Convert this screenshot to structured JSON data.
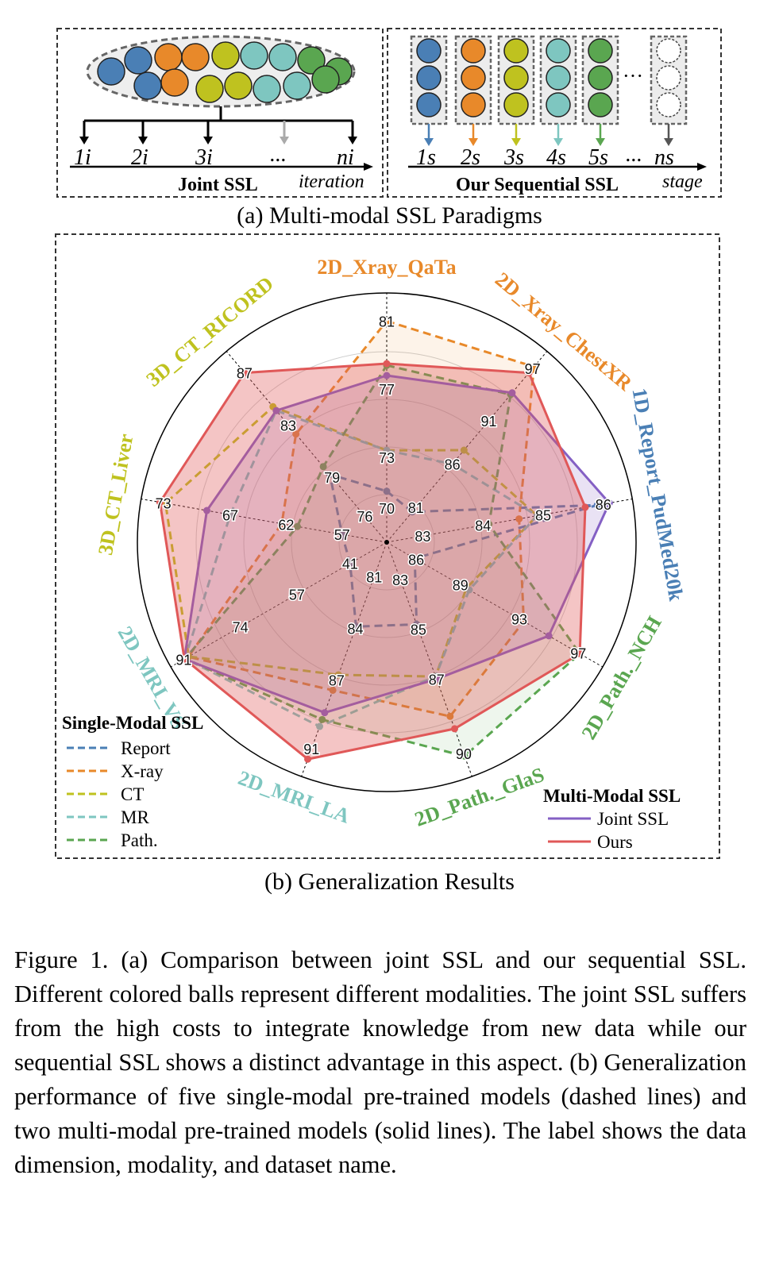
{
  "figure_a": {
    "joint_title": "Joint SSL",
    "joint_axis": "iteration",
    "joint_ticks": [
      "1i",
      "2i",
      "3i",
      "...",
      "ni"
    ],
    "seq_title": "Our Sequential SSL",
    "seq_axis": "stage",
    "seq_ticks": [
      "1s",
      "2s",
      "3s",
      "4s",
      "5s",
      "...",
      "ns"
    ],
    "seq_dots": "···",
    "colors": [
      "#4a7fb5",
      "#e8892a",
      "#bfc21f",
      "#7ec6c0",
      "#5aa650"
    ],
    "caption": "(a) Multi-modal SSL Paradigms"
  },
  "chart_data": {
    "type": "radar",
    "axes": [
      {
        "name": "2D_Xray_QaTa",
        "color": "#e8892a",
        "ticks": [
          "70",
          "73",
          "77",
          "81"
        ],
        "range": [
          68,
          82
        ]
      },
      {
        "name": "2D_Xray_ChestXR",
        "color": "#e8892a",
        "ticks": [
          "81",
          "86",
          "91",
          "97"
        ],
        "range": [
          77,
          98
        ]
      },
      {
        "name": "1D_Report_PudMed20k",
        "color": "#4a7fb5",
        "ticks": [
          "83",
          "84",
          "85",
          "86"
        ],
        "range": [
          82.4,
          86.3
        ]
      },
      {
        "name": "2D_Path._NCH",
        "color": "#5aa650",
        "ticks": [
          "86",
          "89",
          "93",
          "97"
        ],
        "range": [
          84,
          98
        ]
      },
      {
        "name": "2D_Path._GlaS",
        "color": "#5aa650",
        "ticks": [
          "83",
          "85",
          "87",
          "90"
        ],
        "range": [
          81.5,
          90.5
        ]
      },
      {
        "name": "2D_MRI_LA",
        "color": "#7ec6c0",
        "ticks": [
          "81",
          "84",
          "87",
          "91"
        ],
        "range": [
          79,
          92
        ]
      },
      {
        "name": "2D_MRI_VS",
        "color": "#7ec6c0",
        "ticks": [
          "41",
          "57",
          "74",
          "91"
        ],
        "range": [
          30,
          92
        ]
      },
      {
        "name": "3D_CT_Liver",
        "color": "#bfc21f",
        "ticks": [
          "57",
          "62",
          "67",
          "73"
        ],
        "range": [
          53,
          74
        ]
      },
      {
        "name": "3D_CT_RICORD",
        "color": "#bfc21f",
        "ticks": [
          "76",
          "79",
          "83",
          "87"
        ],
        "range": [
          74,
          88
        ]
      }
    ],
    "series": [
      {
        "name": "Report",
        "group": "single",
        "style": "dashed",
        "color": "#4a7fb5",
        "values": [
          71.0,
          80.5,
          85.9,
          85.9,
          84.8,
          83.9,
          41.0,
          57.0,
          79.2
        ]
      },
      {
        "name": "X-ray",
        "group": "single",
        "style": "dashed",
        "color": "#e8892a",
        "values": [
          81.0,
          97.2,
          84.6,
          93.3,
          88.5,
          87.6,
          89.6,
          62.4,
          82.3
        ]
      },
      {
        "name": "CT",
        "group": "single",
        "style": "dashed",
        "color": "#bfc21f",
        "values": [
          73.4,
          87.6,
          84.9,
          89.4,
          86.9,
          86.7,
          89.5,
          72.8,
          84.4
        ]
      },
      {
        "name": "MR",
        "group": "single",
        "style": "dashed",
        "color": "#7ec6c0",
        "values": [
          73.4,
          86.0,
          84.9,
          89.6,
          86.9,
          89.7,
          90.6,
          67.0,
          84.1
        ]
      },
      {
        "name": "Path.",
        "group": "single",
        "style": "dashed",
        "color": "#5aa650",
        "values": [
          78.4,
          94.0,
          84.1,
          97.1,
          90.1,
          89.3,
          90.6,
          61.0,
          79.8
        ]
      },
      {
        "name": "Joint SSL",
        "group": "multi",
        "style": "solid",
        "color": "#8460c4",
        "values": [
          77.8,
          94.2,
          86.1,
          95.0,
          87.0,
          88.9,
          90.8,
          69.1,
          84.1
        ]
      },
      {
        "name": "Ours",
        "group": "multi",
        "style": "solid",
        "color": "#e05858",
        "values": [
          78.5,
          96.5,
          85.7,
          97.1,
          89.0,
          91.6,
          90.8,
          73.3,
          87.0
        ]
      }
    ],
    "legend_single_title": "Single-Modal SSL",
    "legend_multi_title": "Multi-Modal SSL",
    "legend_placement": "bottom-left and bottom-right"
  },
  "figure_b": {
    "caption": "(b) Generalization Results"
  },
  "figure_caption": "Figure 1.  (a) Comparison between joint SSL and our sequential SSL. Different colored balls represent different modalities.  The joint SSL suffers from the high costs to integrate knowledge from new data while our sequential SSL shows a distinct advantage in this aspect.  (b) Generalization performance of five single-modal pre-trained models (dashed lines) and two multi-modal pre-trained models (solid lines). The label shows the data dimension, modality, and dataset name."
}
